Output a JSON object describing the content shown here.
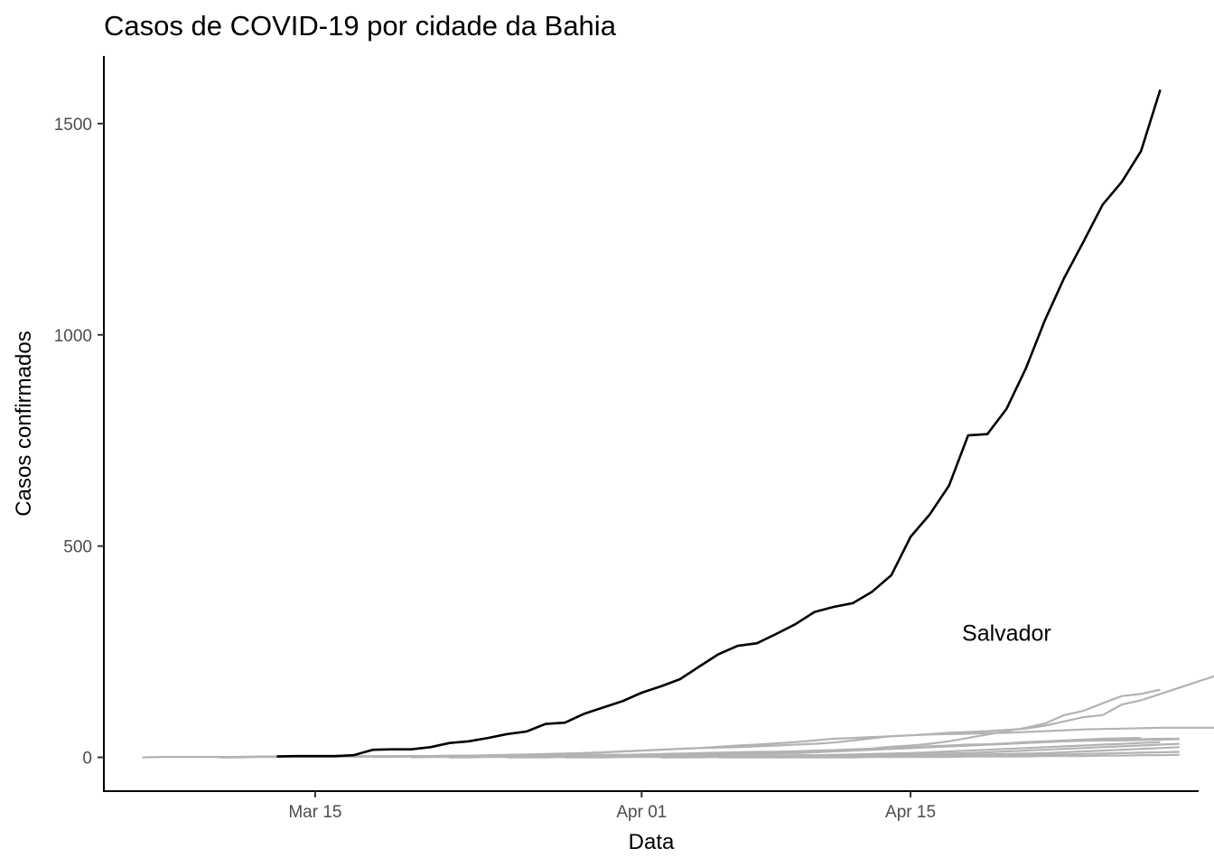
{
  "chart_data": {
    "type": "line",
    "title": "Casos de COVID-19 por cidade da Bahia",
    "xlabel": "Data",
    "ylabel": "Casos confirmados",
    "ylim": [
      -80,
      1660
    ],
    "xlim": [
      "2020-03-04",
      "2020-04-30"
    ],
    "x_ticks": [
      {
        "date": "2020-03-15",
        "label": "Mar 15"
      },
      {
        "date": "2020-04-01",
        "label": "Apr 01"
      },
      {
        "date": "2020-04-15",
        "label": "Apr 15"
      }
    ],
    "y_ticks": [
      0,
      500,
      1000,
      1500
    ],
    "grid": false,
    "legend": "none",
    "annotation": {
      "text": "Salvador",
      "x": "2020-04-20",
      "y": 295
    },
    "highlight_color": "#000000",
    "other_color": "#b3b3b3",
    "series": [
      {
        "name": "Salvador",
        "highlight": true,
        "start": "2020-03-13",
        "values": [
          2,
          3,
          3,
          3,
          5,
          18,
          19,
          19,
          24,
          34,
          38,
          46,
          55,
          61,
          79,
          82,
          103,
          118,
          133,
          153,
          168,
          185,
          215,
          244,
          264,
          270,
          292,
          315,
          344,
          356,
          365,
          392,
          431,
          522,
          575,
          643,
          762,
          765,
          825,
          920,
          1035,
          1135,
          1220,
          1308,
          1362,
          1435,
          1580
        ]
      },
      {
        "name": "",
        "start": "2020-03-06",
        "values": [
          0,
          1,
          1,
          1,
          1,
          1,
          2,
          2,
          2,
          2,
          2,
          3,
          3,
          3,
          3,
          3,
          4,
          4,
          4,
          4,
          5,
          5,
          5,
          6,
          6,
          6,
          6,
          7,
          7,
          8,
          8,
          9,
          10,
          12,
          14,
          16,
          17,
          18,
          20,
          22,
          24,
          26,
          28,
          30,
          31,
          33,
          36,
          38,
          40,
          42,
          44,
          45,
          46
        ]
      },
      {
        "name": "",
        "start": "2020-03-10",
        "values": [
          0,
          0,
          1,
          1,
          1,
          1,
          1,
          2,
          2,
          2,
          3,
          3,
          3,
          3,
          4,
          4,
          4,
          4,
          5,
          5,
          6,
          6,
          7,
          8,
          9,
          10,
          11,
          12,
          13,
          13,
          14,
          15,
          17,
          19,
          21,
          25,
          28,
          32,
          38,
          46,
          54,
          62,
          70,
          80,
          100,
          110,
          128,
          145,
          150,
          160
        ]
      },
      {
        "name": "",
        "start": "2020-03-17",
        "values": [
          1,
          2,
          2,
          3,
          3,
          4,
          4,
          5,
          6,
          7,
          8,
          9,
          10,
          12,
          14,
          16,
          18,
          20,
          22,
          23,
          24,
          26,
          28,
          30,
          32,
          35,
          40,
          45,
          50,
          52,
          55,
          58,
          60,
          62,
          65,
          68,
          75,
          85,
          95,
          100,
          125,
          135,
          150,
          165,
          180,
          195
        ]
      },
      {
        "name": "",
        "start": "2020-03-18",
        "values": [
          1,
          1,
          2,
          2,
          3,
          3,
          4,
          5,
          6,
          7,
          8,
          10,
          12,
          14,
          16,
          18,
          20,
          22,
          25,
          28,
          30,
          33,
          36,
          40,
          44,
          46,
          48,
          50,
          52,
          54,
          55,
          56,
          57,
          58,
          60,
          62,
          64,
          66,
          67,
          68,
          69,
          70,
          70,
          70,
          70
        ]
      },
      {
        "name": "",
        "start": "2020-03-20",
        "values": [
          0,
          1,
          1,
          1,
          2,
          2,
          3,
          3,
          4,
          4,
          5,
          5,
          6,
          7,
          8,
          9,
          10,
          11,
          12,
          13,
          14,
          15,
          16,
          17,
          18,
          20,
          22,
          24,
          26,
          28,
          30,
          32,
          34,
          36,
          38,
          40,
          41,
          42,
          43,
          44,
          44
        ]
      },
      {
        "name": "",
        "start": "2020-03-22",
        "values": [
          0,
          0,
          1,
          1,
          1,
          2,
          2,
          2,
          3,
          3,
          4,
          4,
          5,
          5,
          6,
          7,
          8,
          9,
          10,
          12,
          14,
          16,
          18,
          20,
          22,
          24,
          26,
          28,
          30,
          32,
          34,
          36,
          38,
          39,
          40,
          40,
          41,
          42,
          43
        ]
      },
      {
        "name": "",
        "start": "2020-03-25",
        "values": [
          0,
          0,
          0,
          1,
          1,
          1,
          1,
          2,
          2,
          2,
          3,
          3,
          3,
          4,
          4,
          5,
          5,
          6,
          7,
          8,
          9,
          10,
          12,
          14,
          16,
          18,
          20,
          22,
          24,
          26,
          28,
          30,
          32,
          34,
          36
        ]
      },
      {
        "name": "",
        "start": "2020-03-28",
        "values": [
          0,
          0,
          0,
          1,
          1,
          1,
          1,
          1,
          2,
          2,
          2,
          3,
          3,
          3,
          4,
          4,
          5,
          6,
          7,
          8,
          9,
          10,
          12,
          14,
          16,
          18,
          20,
          22,
          24,
          26,
          28,
          30,
          32
        ]
      },
      {
        "name": "",
        "start": "2020-04-02",
        "values": [
          0,
          0,
          0,
          1,
          1,
          1,
          1,
          2,
          2,
          2,
          3,
          3,
          3,
          4,
          4,
          5,
          6,
          7,
          8,
          9,
          10,
          12,
          14,
          16,
          18,
          20,
          22,
          24
        ]
      },
      {
        "name": "",
        "start": "2020-04-05",
        "values": [
          0,
          0,
          0,
          0,
          1,
          1,
          1,
          1,
          2,
          2,
          2,
          3,
          3,
          3,
          4,
          4,
          5,
          6,
          7,
          8,
          9,
          10,
          11,
          12,
          13
        ]
      },
      {
        "name": "",
        "start": "2020-04-08",
        "values": [
          0,
          0,
          0,
          0,
          0,
          1,
          1,
          1,
          1,
          1,
          2,
          2,
          2,
          2,
          3,
          3,
          3,
          4,
          4,
          5,
          5,
          6
        ]
      }
    ]
  }
}
